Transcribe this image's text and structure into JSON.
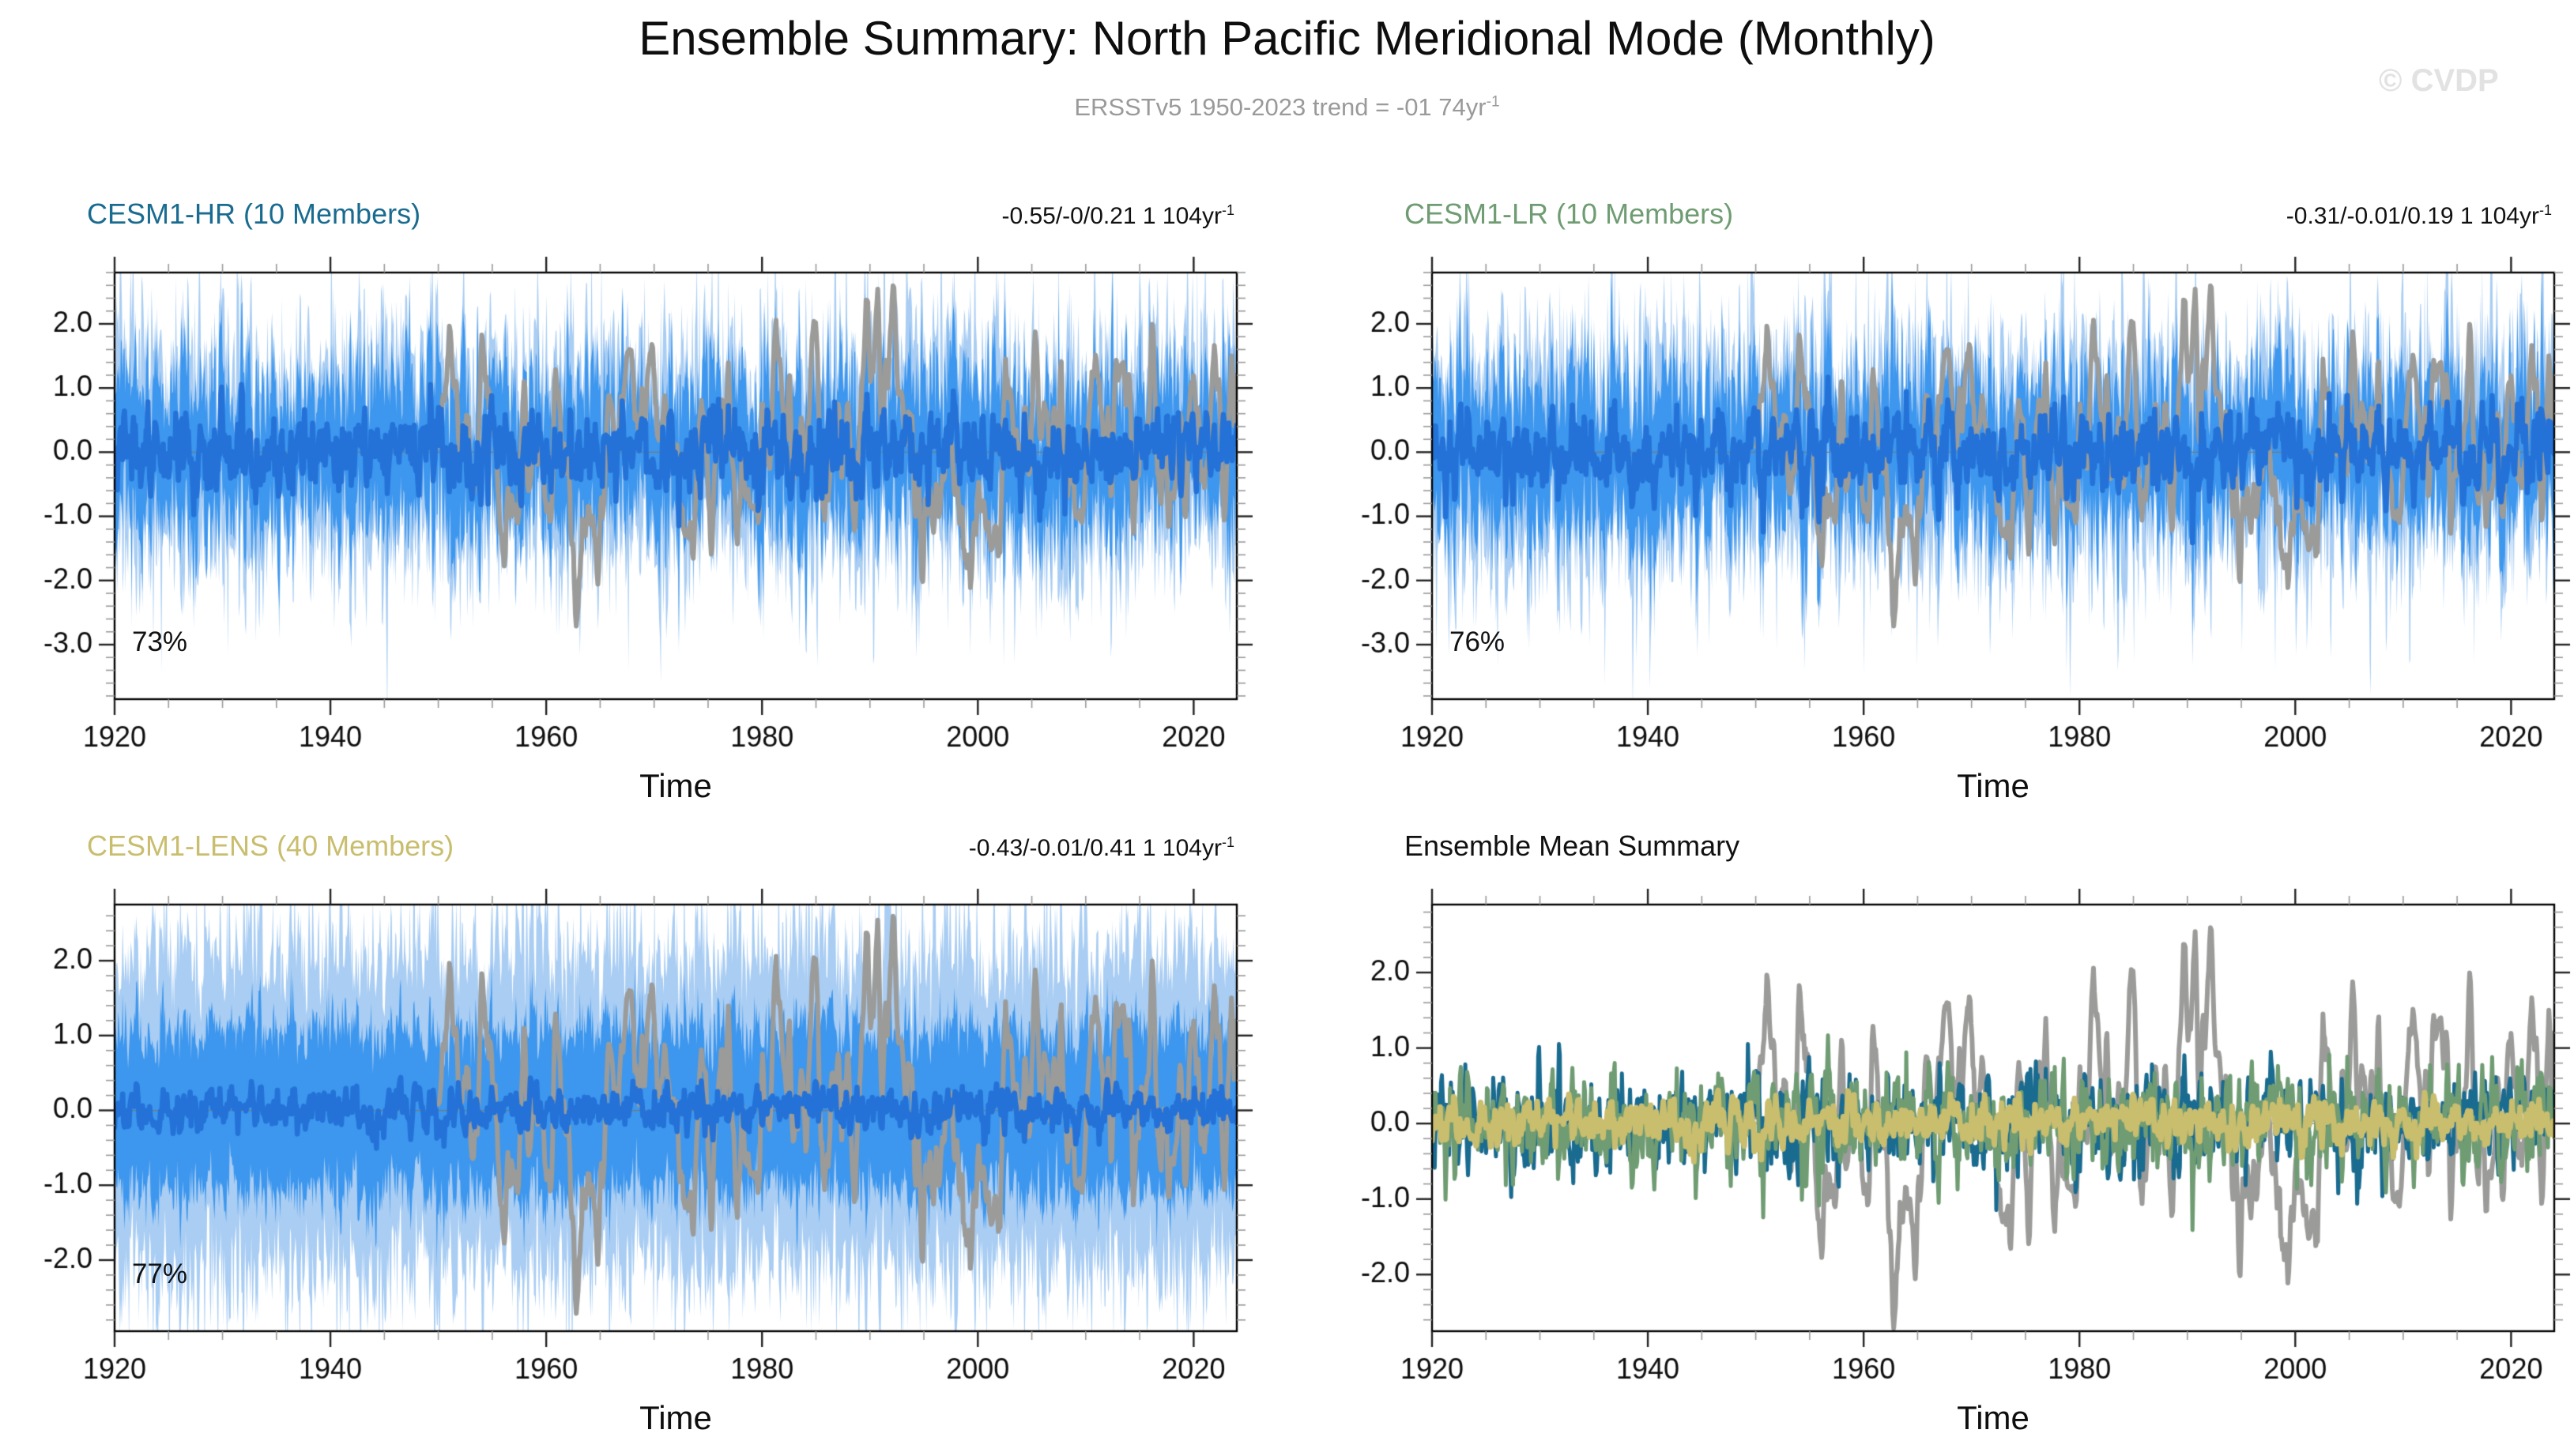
{
  "page": {
    "title": "Ensemble Summary: North Pacific Meridional Mode (Monthly)",
    "subtitle_main": "ERSSTv5 1950-2023 trend = -01 74yr",
    "subtitle_sup": "-1",
    "watermark": "© CVDP"
  },
  "colors": {
    "band_outer": "#a9cdf3",
    "band_inner": "#3d97ee",
    "mean_line": "#2472d8",
    "obs_line": "#9b9b99",
    "hr_title": "#1a6b90",
    "lr_title": "#6f9c72",
    "lens_title": "#c9bd6e",
    "summary_title": "#111111",
    "axis_box": "#000000",
    "tick_major": "#222222",
    "tick_minor": "#999999",
    "zero_line": "#777777",
    "subtitle_gray": "#9a9a9a",
    "watermark_gray": "#e2e2e2"
  },
  "axis_defaults": {
    "x_start": 1920,
    "x_end": 2024,
    "xticks": [
      1920,
      1940,
      1960,
      1980,
      2000,
      2020
    ],
    "x_minor_step": 5,
    "y_minor_step": 0.2,
    "months_per_step": 12
  },
  "chart_data": [
    {
      "type": "line",
      "title": "CESM1-HR (10 Members)",
      "title_color": "hr_title",
      "trend": "-0.55/-0/0.21 1 104yr",
      "trend_sup": "-1",
      "agreement": "73%",
      "xlabel": "Time",
      "x_range": [
        1920,
        2024
      ],
      "ylim": [
        -3.85,
        2.8
      ],
      "yticks": [
        2.0,
        1.0,
        0.0,
        -1.0,
        -2.0,
        -3.0
      ],
      "grid": false,
      "legend": "none",
      "series": [
        {
          "name": "member min-max spread",
          "style": "band",
          "color_key": "band_outer",
          "approx_range": [
            -2.6,
            2.6
          ]
        },
        {
          "name": "member inner spread",
          "style": "band",
          "color_key": "band_inner",
          "approx_range": [
            -1.3,
            1.3
          ]
        },
        {
          "name": "ensemble mean (10 members)",
          "style": "line",
          "color_key": "mean_line",
          "approx_value": 0.0
        },
        {
          "name": "ERSSTv5 observations",
          "style": "line",
          "color_key": "obs_line",
          "period": "1950-2023",
          "approx_range": [
            -2.7,
            2.8
          ]
        }
      ],
      "bands": true,
      "sim": {
        "key": "hr",
        "members": 10,
        "seed": 20107,
        "ar": 0.55,
        "sigma": 1.05
      },
      "obs": {
        "key": "obs",
        "seed": 4242,
        "ar": 0.87,
        "sigma": 0.55,
        "start_year": 1950,
        "smooth": 3
      }
    },
    {
      "type": "line",
      "title": "CESM1-LR (10 Members)",
      "title_color": "lr_title",
      "trend": "-0.31/-0.01/0.19 1 104yr",
      "trend_sup": "-1",
      "agreement": "76%",
      "xlabel": "Time",
      "x_range": [
        1920,
        2024
      ],
      "ylim": [
        -3.85,
        2.8
      ],
      "yticks": [
        2.0,
        1.0,
        0.0,
        -1.0,
        -2.0,
        -3.0
      ],
      "grid": false,
      "legend": "none",
      "series": [
        {
          "name": "member min-max spread",
          "style": "band",
          "color_key": "band_outer",
          "approx_range": [
            -2.6,
            2.6
          ]
        },
        {
          "name": "member inner spread",
          "style": "band",
          "color_key": "band_inner",
          "approx_range": [
            -1.3,
            1.3
          ]
        },
        {
          "name": "ensemble mean (10 members)",
          "style": "line",
          "color_key": "mean_line",
          "approx_value": 0.0
        },
        {
          "name": "ERSSTv5 observations",
          "style": "line",
          "color_key": "obs_line",
          "period": "1950-2023",
          "approx_range": [
            -2.7,
            2.8
          ]
        }
      ],
      "bands": true,
      "sim": {
        "key": "lr",
        "members": 10,
        "seed": 55321,
        "ar": 0.55,
        "sigma": 1.05
      },
      "obs": {
        "key": "obs",
        "seed": 4242,
        "ar": 0.87,
        "sigma": 0.55,
        "start_year": 1950,
        "smooth": 3
      }
    },
    {
      "type": "line",
      "title": "CESM1-LENS (40 Members)",
      "title_color": "lens_title",
      "trend": "-0.43/-0.01/0.41 1 104yr",
      "trend_sup": "-1",
      "agreement": "77%",
      "xlabel": "Time",
      "x_range": [
        1920,
        2024
      ],
      "ylim": [
        -2.95,
        2.75
      ],
      "yticks": [
        2.0,
        1.0,
        0.0,
        -1.0,
        -2.0
      ],
      "grid": false,
      "legend": "none",
      "series": [
        {
          "name": "member min-max spread",
          "style": "band",
          "color_key": "band_outer",
          "approx_range": [
            -2.3,
            2.3
          ]
        },
        {
          "name": "member inner spread",
          "style": "band",
          "color_key": "band_inner",
          "approx_range": [
            -1.2,
            1.2
          ]
        },
        {
          "name": "ensemble mean (40 members)",
          "style": "line",
          "color_key": "mean_line",
          "approx_value": 0.0
        },
        {
          "name": "ERSSTv5 observations",
          "style": "line",
          "color_key": "obs_line",
          "period": "1950-2023",
          "approx_range": [
            -2.7,
            2.8
          ]
        }
      ],
      "bands": true,
      "sim": {
        "key": "lens",
        "members": 40,
        "seed": 77019,
        "ar": 0.55,
        "sigma": 1.0
      },
      "obs": {
        "key": "obs",
        "seed": 4242,
        "ar": 0.87,
        "sigma": 0.55,
        "start_year": 1950,
        "smooth": 3
      }
    },
    {
      "type": "line",
      "title": "Ensemble Mean Summary",
      "title_color": "summary_title",
      "trend": "",
      "trend_sup": "",
      "agreement": "",
      "xlabel": "Time",
      "x_range": [
        1920,
        2024
      ],
      "ylim": [
        -2.75,
        2.9
      ],
      "yticks": [
        2.0,
        1.0,
        0.0,
        -1.0,
        -2.0
      ],
      "grid": false,
      "legend": "none",
      "series": [
        {
          "name": "CESM1-HR ensemble mean",
          "style": "line",
          "color_key": "hr_title",
          "approx_value": 0.0
        },
        {
          "name": "CESM1-LR ensemble mean",
          "style": "line",
          "color_key": "lr_title",
          "approx_value": 0.0
        },
        {
          "name": "CESM1-LENS ensemble mean",
          "style": "line",
          "color_key": "lens_title",
          "approx_value": 0.0
        },
        {
          "name": "ERSSTv5 observations",
          "style": "line",
          "color_key": "obs_line",
          "period": "1950-2023",
          "approx_range": [
            -2.7,
            2.8
          ]
        }
      ],
      "bands": false,
      "mean_refs": [
        {
          "sim": "hr",
          "color_key": "hr_title",
          "lw": 5
        },
        {
          "sim": "lr",
          "color_key": "lr_title",
          "lw": 5
        },
        {
          "sim": "lens",
          "color_key": "lens_title",
          "lw": 7
        }
      ],
      "obs": {
        "key": "obs",
        "seed": 4242,
        "ar": 0.87,
        "sigma": 0.55,
        "start_year": 1950,
        "smooth": 3
      }
    }
  ]
}
